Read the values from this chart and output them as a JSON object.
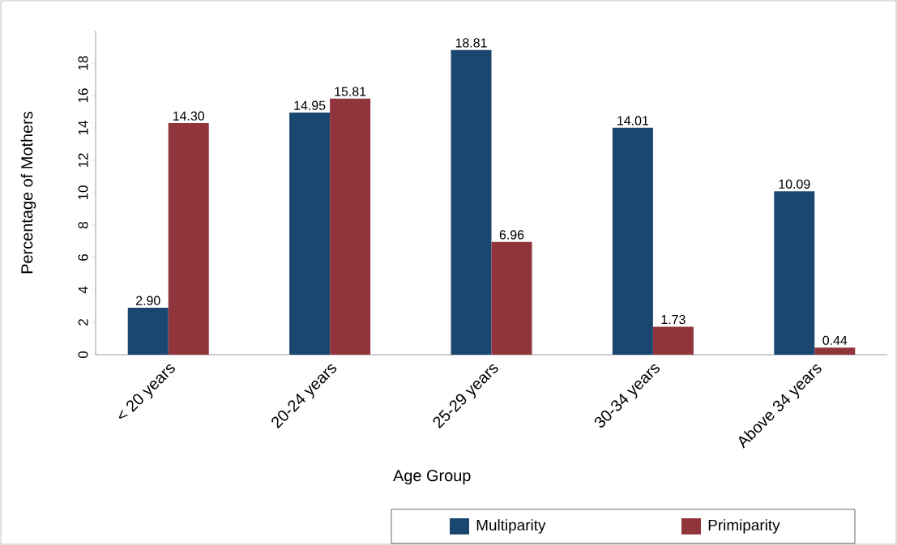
{
  "chart_data": {
    "type": "bar",
    "xlabel": "Age Group",
    "ylabel": "Percentage of Mothers",
    "categories": [
      "< 20 years",
      "20-24 years",
      "25-29  years",
      "30-34 years",
      "Above 34 years"
    ],
    "series": [
      {
        "name": "Multiparity",
        "color": "#1a4770",
        "values": [
          2.9,
          14.95,
          18.81,
          14.01,
          10.09
        ],
        "value_labels": [
          "2.90",
          "14.95",
          "18.81",
          "14.01",
          "10.09"
        ]
      },
      {
        "name": "Primiparity",
        "color": "#90353b",
        "values": [
          14.3,
          15.81,
          6.96,
          1.73,
          0.44
        ],
        "value_labels": [
          "14.30",
          "15.81",
          "6.96",
          "1.73",
          "0.44"
        ]
      }
    ],
    "ylim": [
      0,
      20
    ],
    "yticks": [
      0,
      2,
      4,
      6,
      8,
      10,
      12,
      14,
      16,
      18
    ],
    "grid": false,
    "legend": "bottom"
  }
}
